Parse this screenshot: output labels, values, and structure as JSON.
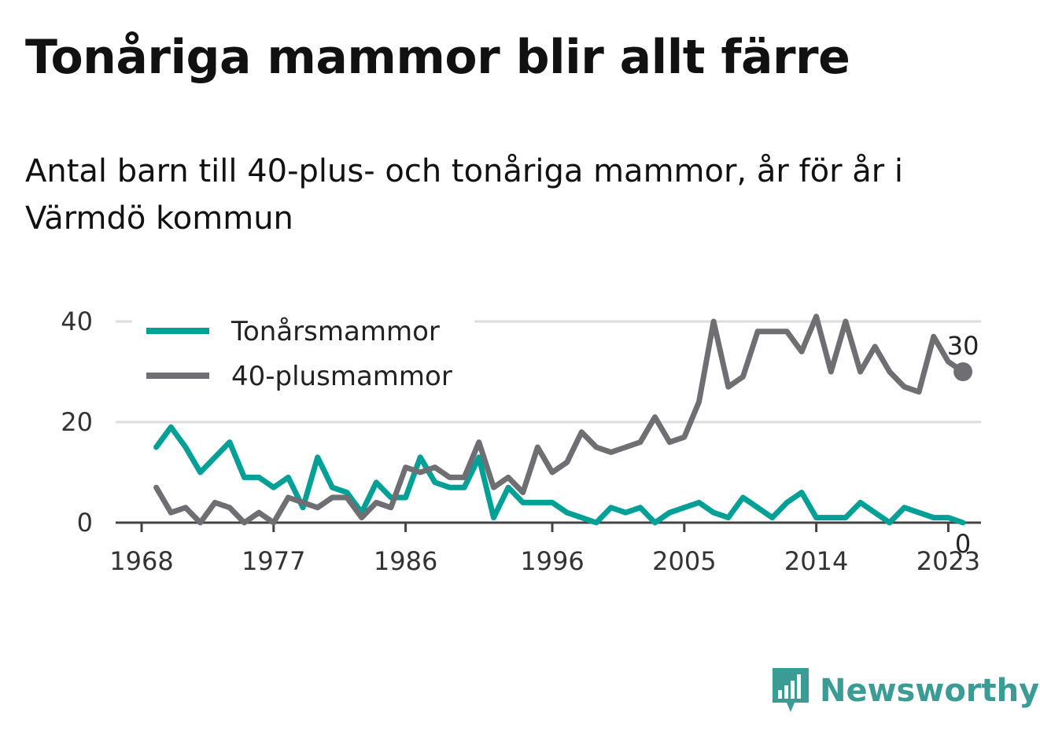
{
  "header": {
    "title": "Tonåriga mammor blir allt färre",
    "subtitle": "Antal barn till 40-plus- och tonåriga mammor, år för år i Värmdö kommun"
  },
  "brand": {
    "name": "Newsworthy",
    "icon": "bar-chart-icon",
    "color": "#3a9c95"
  },
  "chart_data": {
    "type": "line",
    "x": [
      1969,
      1970,
      1971,
      1972,
      1973,
      1974,
      1975,
      1976,
      1977,
      1978,
      1979,
      1980,
      1981,
      1982,
      1983,
      1984,
      1985,
      1986,
      1987,
      1988,
      1989,
      1990,
      1991,
      1992,
      1993,
      1994,
      1995,
      1996,
      1997,
      1998,
      1999,
      2000,
      2001,
      2002,
      2003,
      2004,
      2005,
      2006,
      2007,
      2008,
      2009,
      2010,
      2011,
      2012,
      2013,
      2014,
      2015,
      2016,
      2017,
      2018,
      2019,
      2020,
      2021,
      2022,
      2023,
      2024
    ],
    "series": [
      {
        "name": "Tonårsmammor",
        "color": "#00a096",
        "values": [
          15,
          19,
          15,
          10,
          13,
          16,
          9,
          9,
          7,
          9,
          3,
          13,
          7,
          6,
          2,
          8,
          5,
          5,
          13,
          8,
          7,
          7,
          13,
          1,
          7,
          4,
          4,
          4,
          2,
          1,
          0,
          3,
          2,
          3,
          0,
          2,
          3,
          4,
          2,
          1,
          5,
          3,
          1,
          4,
          6,
          1,
          1,
          1,
          4,
          2,
          0,
          3,
          2,
          1,
          1,
          0
        ],
        "end_label": "0"
      },
      {
        "name": "40-plusmammor",
        "color": "#6e6e73",
        "values": [
          7,
          2,
          3,
          0,
          4,
          3,
          0,
          2,
          0,
          5,
          4,
          3,
          5,
          5,
          1,
          4,
          3,
          11,
          10,
          11,
          9,
          9,
          16,
          7,
          9,
          6,
          15,
          10,
          12,
          18,
          15,
          14,
          15,
          16,
          21,
          16,
          17,
          24,
          40,
          27,
          29,
          38,
          38,
          38,
          34,
          41,
          30,
          40,
          30,
          35,
          30,
          27,
          26,
          37,
          32,
          30
        ],
        "end_label": "30"
      }
    ],
    "x_ticks": [
      1968,
      1977,
      1986,
      1996,
      2005,
      2014,
      2023
    ],
    "y_ticks": [
      0,
      20,
      40
    ],
    "xlim": [
      1968,
      2027
    ],
    "ylim": [
      0,
      40
    ],
    "grid": true,
    "legend": "top-left"
  }
}
